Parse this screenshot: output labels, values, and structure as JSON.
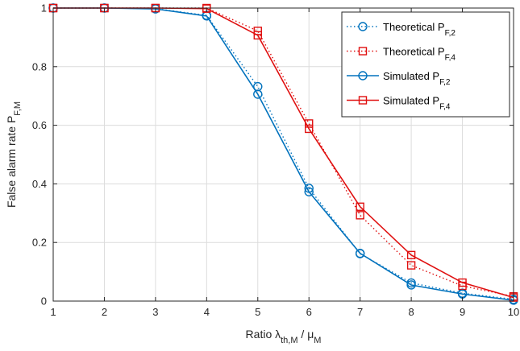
{
  "chart_data": {
    "type": "line",
    "title": "",
    "xlabel": {
      "prefix": "Ratio ",
      "base1": "λ",
      "sub1": "th,M",
      "sep": " / ",
      "base2": "μ",
      "sub2": "M"
    },
    "ylabel": {
      "base": "False alarm rate P",
      "sub": "F,M"
    },
    "x": [
      1,
      2,
      3,
      4,
      5,
      6,
      7,
      8,
      9,
      10
    ],
    "xlim": [
      1,
      10
    ],
    "ylim": [
      0,
      1
    ],
    "xticks": [
      "1",
      "2",
      "3",
      "4",
      "5",
      "6",
      "7",
      "8",
      "9",
      "10"
    ],
    "yticks": [
      "0",
      "0.2",
      "0.4",
      "0.6",
      "0.8",
      "1"
    ],
    "ytick_values": [
      0,
      0.2,
      0.4,
      0.6,
      0.8,
      1
    ],
    "grid": true,
    "legend_position": "top-right",
    "series": [
      {
        "name": "Theoretical P",
        "sub": "F,2",
        "color": "#0072BD",
        "linestyle": "dotted",
        "marker": "circle",
        "values": [
          1.0,
          1.0,
          0.998,
          0.975,
          0.732,
          0.385,
          0.162,
          0.062,
          0.027,
          0.006
        ]
      },
      {
        "name": "Theoretical P",
        "sub": "F,4",
        "color": "#E01010",
        "linestyle": "dotted",
        "marker": "square",
        "values": [
          1.0,
          1.0,
          1.0,
          1.0,
          0.922,
          0.606,
          0.293,
          0.122,
          0.052,
          0.016
        ]
      },
      {
        "name": "Simulated P",
        "sub": "F,2",
        "color": "#0072BD",
        "linestyle": "solid",
        "marker": "circle",
        "values": [
          1.0,
          1.0,
          0.997,
          0.973,
          0.706,
          0.373,
          0.163,
          0.055,
          0.024,
          0.003
        ]
      },
      {
        "name": "Simulated P",
        "sub": "F,4",
        "color": "#E01010",
        "linestyle": "solid",
        "marker": "square",
        "values": [
          1.0,
          1.0,
          1.0,
          0.998,
          0.907,
          0.588,
          0.322,
          0.157,
          0.063,
          0.012
        ]
      }
    ]
  }
}
